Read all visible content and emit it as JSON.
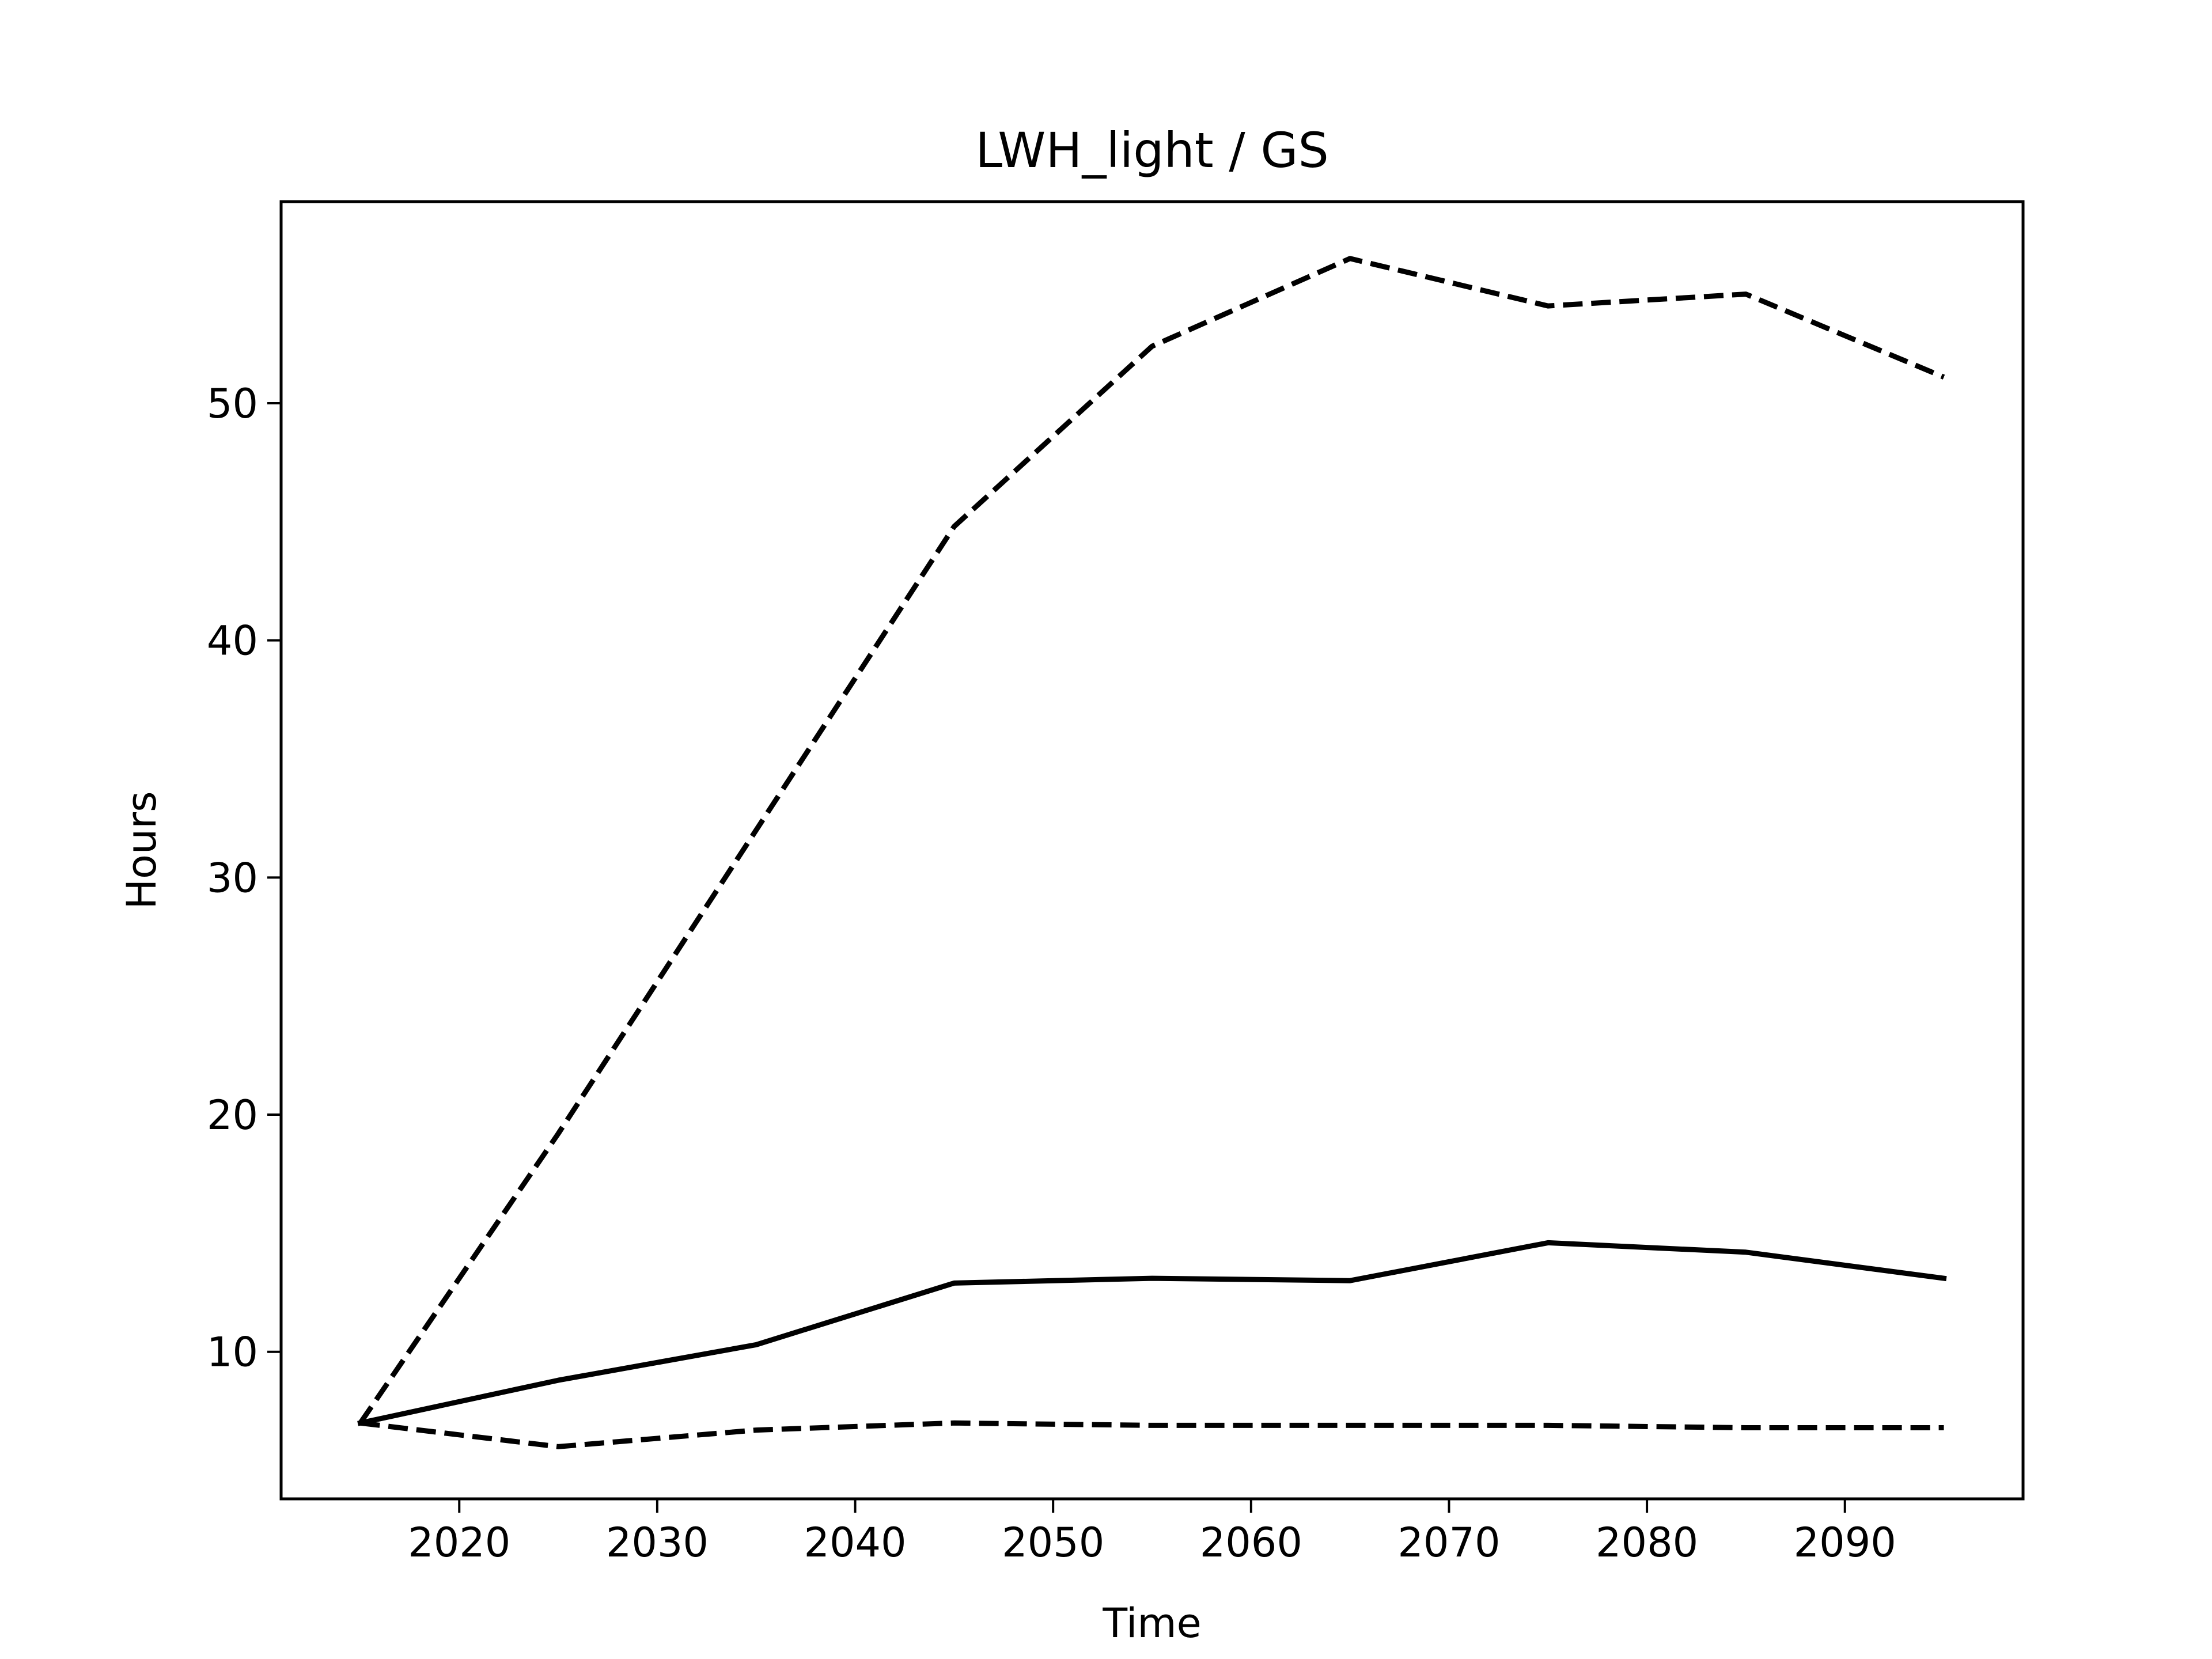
{
  "chart_data": {
    "type": "line",
    "title": "LWH_light / GS",
    "xlabel": "Time",
    "ylabel": "Hours",
    "xlim": [
      2011,
      2099
    ],
    "ylim": [
      3.8,
      58.5
    ],
    "xticks": [
      2020,
      2030,
      2040,
      2050,
      2060,
      2070,
      2080,
      2090
    ],
    "yticks": [
      10,
      20,
      30,
      40,
      50
    ],
    "grid": false,
    "legend": "none",
    "line_color": "#000000",
    "x": [
      2015,
      2025,
      2035,
      2045,
      2055,
      2065,
      2075,
      2085,
      2095
    ],
    "series": [
      {
        "style": "dashed",
        "values": [
          7.0,
          19.2,
          32.0,
          44.8,
          52.4,
          56.1,
          54.1,
          54.6,
          51.1
        ]
      },
      {
        "style": "solid",
        "values": [
          7.0,
          8.8,
          10.3,
          12.9,
          13.1,
          13.0,
          14.6,
          14.2,
          13.1
        ]
      },
      {
        "style": "dashed",
        "values": [
          7.0,
          6.0,
          6.7,
          7.0,
          6.9,
          6.9,
          6.9,
          6.8,
          6.8
        ]
      }
    ]
  }
}
